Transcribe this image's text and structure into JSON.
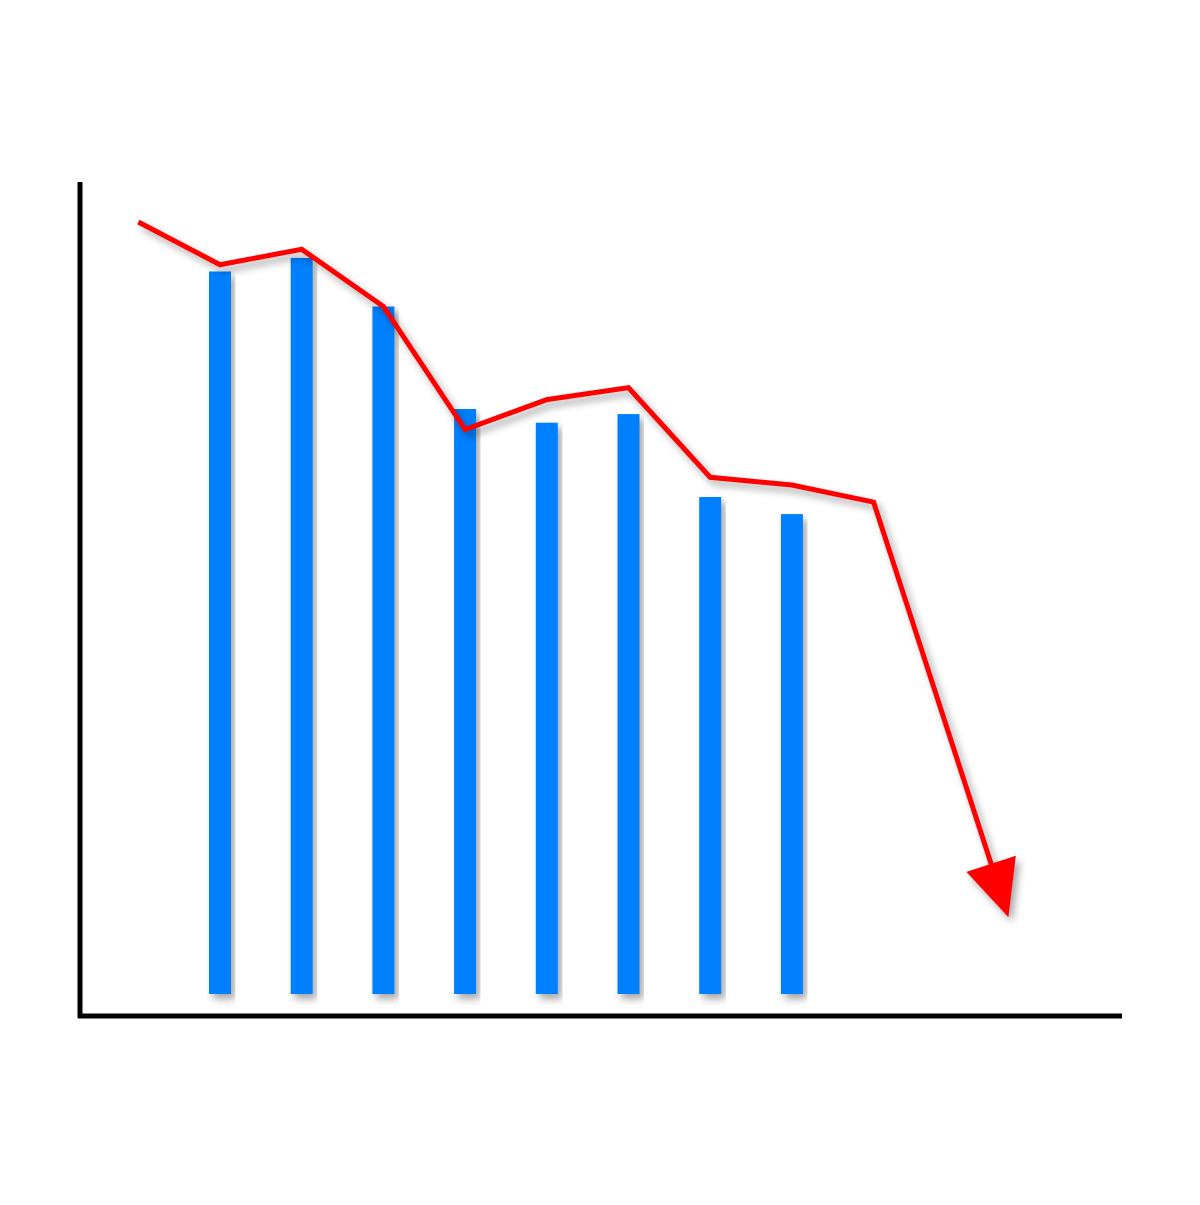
{
  "chart_data": {
    "type": "bar",
    "title": "",
    "xlabel": "",
    "ylabel": "",
    "axis_ticks": "none",
    "grid": false,
    "legend": "none",
    "ylim": [
      0,
      100
    ],
    "categories": [
      "",
      "",
      "",
      "",
      "",
      "",
      "",
      ""
    ],
    "series": [
      {
        "kind": "bar",
        "color": "#0080ff",
        "values": [
          84.6,
          86.2,
          80.5,
          68.5,
          66.9,
          67.9,
          58.2,
          56.2
        ]
      }
    ],
    "trend_line": {
      "kind": "line-with-arrow",
      "color": "#ff0000",
      "direction": "downward",
      "x": [
        -1,
        0,
        1,
        2,
        3,
        4,
        5,
        6,
        7,
        8,
        9.65
      ],
      "y": [
        90.4,
        85.4,
        87.2,
        80.5,
        66.1,
        69.6,
        71.0,
        60.5,
        59.6,
        57.6,
        9.0
      ]
    }
  }
}
